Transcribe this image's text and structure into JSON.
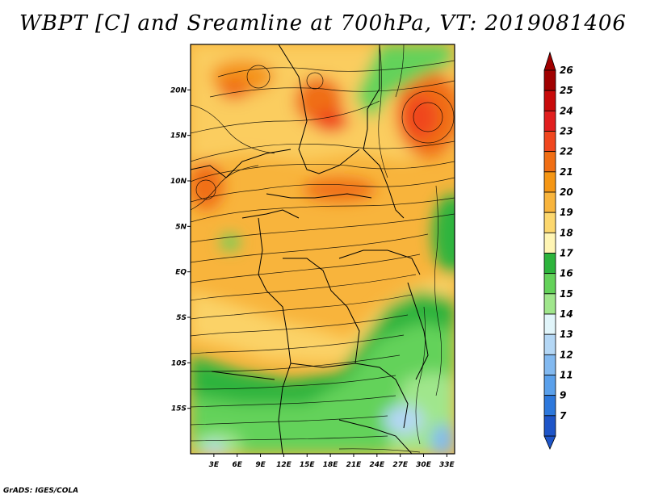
{
  "title": "WBPT [C] and Sreamline at 700hPa, VT: 2019081406",
  "credit": "GrADS: IGES/COLA",
  "map": {
    "lon_range": [
      0,
      34
    ],
    "lat_range": [
      -20,
      25
    ],
    "y_ticks": [
      {
        "lat": 20,
        "label": "20N"
      },
      {
        "lat": 15,
        "label": "15N"
      },
      {
        "lat": 10,
        "label": "10N"
      },
      {
        "lat": 5,
        "label": "5N"
      },
      {
        "lat": 0,
        "label": "EQ"
      },
      {
        "lat": -5,
        "label": "5S"
      },
      {
        "lat": -10,
        "label": "10S"
      },
      {
        "lat": -15,
        "label": "15S"
      }
    ],
    "x_ticks": [
      {
        "lon": 3,
        "label": "3E"
      },
      {
        "lon": 6,
        "label": "6E"
      },
      {
        "lon": 9,
        "label": "9E"
      },
      {
        "lon": 12,
        "label": "12E"
      },
      {
        "lon": 15,
        "label": "15E"
      },
      {
        "lon": 18,
        "label": "18E"
      },
      {
        "lon": 21,
        "label": "21E"
      },
      {
        "lon": 24,
        "label": "24E"
      },
      {
        "lon": 27,
        "label": "27E"
      },
      {
        "lon": 30,
        "label": "30E"
      },
      {
        "lon": 33,
        "label": "33E"
      }
    ]
  },
  "colorbar": {
    "levels": [
      {
        "label": "26",
        "color": "#a00000"
      },
      {
        "label": "25",
        "color": "#c80a0a"
      },
      {
        "label": "24",
        "color": "#e11e1e"
      },
      {
        "label": "23",
        "color": "#f0461e"
      },
      {
        "label": "22",
        "color": "#f06e14"
      },
      {
        "label": "21",
        "color": "#f59614"
      },
      {
        "label": "20",
        "color": "#f8b43c"
      },
      {
        "label": "19",
        "color": "#fcd76e"
      },
      {
        "label": "18",
        "color": "#fff5b4"
      },
      {
        "label": "17",
        "color": "#2db43c"
      },
      {
        "label": "16",
        "color": "#64d25a"
      },
      {
        "label": "15",
        "color": "#a0e68c"
      },
      {
        "label": "14",
        "color": "#e1f5fa"
      },
      {
        "label": "13",
        "color": "#b4d7f5"
      },
      {
        "label": "12",
        "color": "#82b9f0"
      },
      {
        "label": "11",
        "color": "#5aa0eb"
      },
      {
        "label": "9",
        "color": "#2d78dc"
      },
      {
        "label": "7",
        "color": "#1e55c8"
      }
    ],
    "top_arrow_color": "#a00000",
    "bottom_arrow_color": "#1e55c8"
  }
}
